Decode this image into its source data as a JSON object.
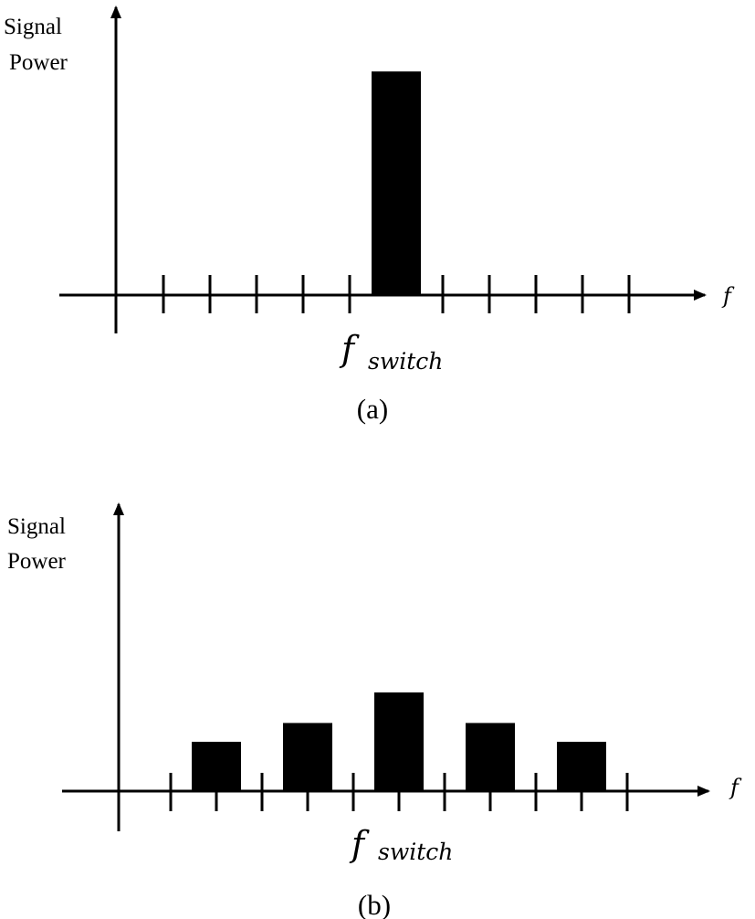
{
  "chart_data": [
    {
      "type": "bar",
      "caption": "(a)",
      "ylabel": [
        "Signal",
        "Power"
      ],
      "xlabel": "f",
      "center_label": {
        "symbol": "f",
        "subscript": "switch"
      },
      "bars": [
        {
          "x": 0,
          "value": 1.0
        }
      ],
      "x_ticks": [
        -5,
        -4,
        -3,
        -2,
        -1,
        1,
        2,
        3,
        4,
        5
      ],
      "ylim": [
        0,
        1.05
      ],
      "grid": false,
      "color": "#000000"
    },
    {
      "type": "bar",
      "caption": "(b)",
      "ylabel": [
        "Signal",
        "Power"
      ],
      "xlabel": "f",
      "center_label": {
        "symbol": "f",
        "subscript": "switch"
      },
      "bars": [
        {
          "x": -2,
          "value": 0.21
        },
        {
          "x": -1,
          "value": 0.29
        },
        {
          "x": 0,
          "value": 0.42
        },
        {
          "x": 1,
          "value": 0.29
        },
        {
          "x": 2,
          "value": 0.21
        }
      ],
      "x_ticks": [
        -2.5,
        -2,
        -1.5,
        -1,
        -0.5,
        0,
        0.5,
        1,
        1.5,
        2,
        2.5
      ],
      "ylim": [
        0,
        1.05
      ],
      "grid": false,
      "color": "#000000"
    }
  ]
}
